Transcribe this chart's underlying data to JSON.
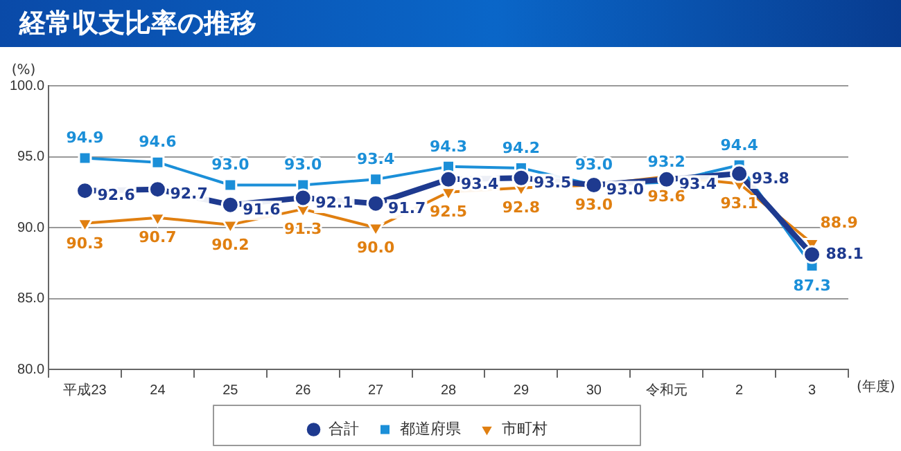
{
  "chart_data": {
    "type": "line",
    "title": "経常収支比率の推移",
    "ylabel": "(%)",
    "xlabel": "(年度)",
    "categories": [
      "平成23",
      "24",
      "25",
      "26",
      "27",
      "28",
      "29",
      "30",
      "令和元",
      "2",
      "3"
    ],
    "series": [
      {
        "name": "合計",
        "color": "#1e3a8f",
        "marker": "circle",
        "values": [
          92.6,
          92.7,
          91.6,
          92.1,
          91.7,
          93.4,
          93.5,
          93.0,
          93.4,
          93.8,
          88.1
        ],
        "value_labels": [
          "92.6",
          "92.7",
          "91.6",
          "92.1",
          "91.7",
          "93.4",
          "93.5",
          "93.0",
          "93.4",
          "93.8",
          "88.1"
        ]
      },
      {
        "name": "都道府県",
        "color": "#1b8fd8",
        "marker": "square",
        "values": [
          94.9,
          94.6,
          93.0,
          93.0,
          93.4,
          94.3,
          94.2,
          93.0,
          93.2,
          94.4,
          87.3
        ],
        "value_labels": [
          "94.9",
          "94.6",
          "93.0",
          "93.0",
          "93.4",
          "94.3",
          "94.2",
          "93.0",
          "93.2",
          "94.4",
          "87.3"
        ]
      },
      {
        "name": "市町村",
        "color": "#e07f10",
        "marker": "triangle",
        "values": [
          90.3,
          90.7,
          90.2,
          91.3,
          90.0,
          92.5,
          92.8,
          93.0,
          93.6,
          93.1,
          88.9
        ],
        "value_labels": [
          "90.3",
          "90.7",
          "90.2",
          "91.3",
          "90.0",
          "92.5",
          "92.8",
          "93.0",
          "93.6",
          "93.1",
          "88.9"
        ]
      }
    ],
    "ylim": [
      80,
      100
    ],
    "yticks": [
      {
        "value": 80,
        "label": "80.0"
      },
      {
        "value": 85,
        "label": "85.0"
      },
      {
        "value": 90,
        "label": "90.0"
      },
      {
        "value": 95,
        "label": "95.0"
      },
      {
        "value": 100,
        "label": "100.0"
      }
    ],
    "grid": "y",
    "legend": "bottom",
    "line_style": "solid"
  }
}
